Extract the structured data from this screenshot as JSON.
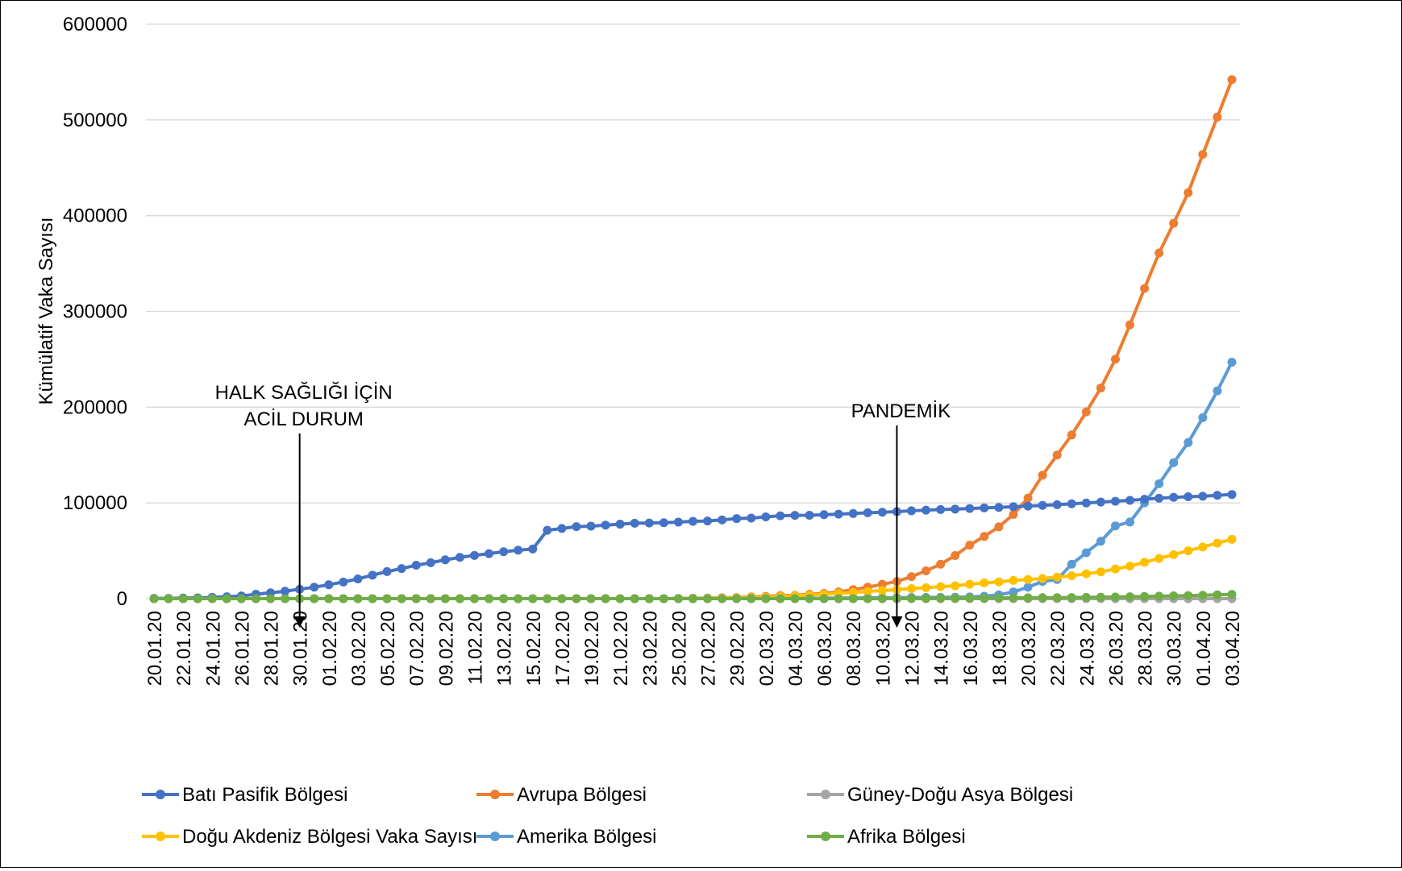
{
  "chart_data": {
    "type": "line",
    "title": "",
    "xlabel": "",
    "ylabel": "Kümülatif Vaka Sayısı",
    "ylim": [
      0,
      600000
    ],
    "yticks": [
      "0",
      "100000",
      "200000",
      "300000",
      "400000",
      "500000",
      "600000"
    ],
    "grid": true,
    "legend_position": "bottom",
    "x": [
      "20.01.20",
      "21.01.20",
      "22.01.20",
      "23.01.20",
      "24.01.20",
      "25.01.20",
      "26.01.20",
      "27.01.20",
      "28.01.20",
      "29.01.20",
      "30.01.20",
      "31.01.20",
      "01.02.20",
      "02.02.20",
      "03.02.20",
      "04.02.20",
      "05.02.20",
      "06.02.20",
      "07.02.20",
      "08.02.20",
      "09.02.20",
      "10.02.20",
      "11.02.20",
      "12.02.20",
      "13.02.20",
      "14.02.20",
      "15.02.20",
      "16.02.20",
      "17.02.20",
      "18.02.20",
      "19.02.20",
      "20.02.20",
      "21.02.20",
      "22.02.20",
      "23.02.20",
      "24.02.20",
      "25.02.20",
      "26.02.20",
      "27.02.20",
      "28.02.20",
      "29.02.20",
      "01.03.20",
      "02.03.20",
      "03.03.20",
      "04.03.20",
      "05.03.20",
      "06.03.20",
      "07.03.20",
      "08.03.20",
      "09.03.20",
      "10.03.20",
      "11.03.20",
      "12.03.20",
      "13.03.20",
      "14.03.20",
      "15.03.20",
      "16.03.20",
      "17.03.20",
      "18.03.20",
      "19.03.20",
      "20.03.20",
      "21.03.20",
      "22.03.20",
      "23.03.20",
      "24.03.20",
      "25.03.20",
      "26.03.20",
      "27.03.20",
      "28.03.20",
      "29.03.20",
      "30.03.20",
      "31.03.20",
      "01.04.20",
      "02.04.20",
      "03.04.20"
    ],
    "xticklabels": [
      "20.01.20",
      "22.01.20",
      "24.01.20",
      "26.01.20",
      "28.01.20",
      "30.01.20",
      "01.02.20",
      "03.02.20",
      "05.02.20",
      "07.02.20",
      "09.02.20",
      "11.02.20",
      "13.02.20",
      "15.02.20",
      "17.02.20",
      "19.02.20",
      "21.02.20",
      "23.02.20",
      "25.02.20",
      "27.02.20",
      "29.02.20",
      "02.03.20",
      "04.03.20",
      "06.03.20",
      "08.03.20",
      "10.03.20",
      "12.03.20",
      "14.03.20",
      "16.03.20",
      "18.03.20",
      "20.03.20",
      "22.03.20",
      "24.03.20",
      "26.03.20",
      "28.03.20",
      "30.03.20",
      "01.04.20",
      "03.04.20"
    ],
    "series": [
      {
        "name": "Batı Pasifik Bölgesi",
        "color": "#4472C4",
        "values": [
          282,
          314,
          581,
          846,
          1320,
          2014,
          2798,
          4593,
          6065,
          7818,
          9826,
          11953,
          14557,
          17391,
          20630,
          24554,
          28276,
          31481,
          34886,
          37558,
          40554,
          43103,
          45171,
          46997,
          49053,
          50580,
          51857,
          71429,
          73332,
          75204,
          75748,
          76769,
          77794,
          78811,
          78959,
          79331,
          79968,
          80813,
          81109,
          82294,
          83652,
          84124,
          85403,
          86604,
          86990,
          87137,
          87708,
          88225,
          88948,
          89735,
          90218,
          90869,
          91779,
          92425,
          93123,
          93543,
          94173,
          94742,
          95285,
          96010,
          96692,
          97411,
          98141,
          99052,
          99920,
          100845,
          101769,
          102703,
          103775,
          104868,
          105792,
          106422,
          106965,
          107945,
          108815
        ]
      },
      {
        "name": "Avrupa Bölgesi",
        "color": "#ED7D31",
        "values": [
          0,
          0,
          0,
          0,
          0,
          0,
          0,
          0,
          0,
          0,
          0,
          0,
          0,
          0,
          0,
          0,
          0,
          0,
          0,
          0,
          0,
          0,
          0,
          0,
          0,
          0,
          0,
          0,
          0,
          0,
          0,
          0,
          0,
          0,
          0,
          0,
          200,
          400,
          600,
          900,
          1200,
          1800,
          2400,
          3200,
          3500,
          4500,
          5500,
          7000,
          9500,
          12000,
          15000,
          18000,
          23000,
          29000,
          36000,
          45000,
          56000,
          65000,
          75000,
          88000,
          105000,
          129000,
          150000,
          171000,
          195000,
          220000,
          250000,
          286000,
          324000,
          361000,
          392000,
          424000,
          464000,
          503000,
          542000
        ]
      },
      {
        "name": "Güney-Doğu Asya Bölgesi",
        "color": "#A5A5A5",
        "values": [
          0,
          0,
          0,
          0,
          0,
          0,
          0,
          0,
          0,
          0,
          0,
          0,
          0,
          0,
          0,
          0,
          0,
          0,
          0,
          0,
          0,
          0,
          0,
          0,
          0,
          0,
          0,
          0,
          0,
          0,
          0,
          0,
          0,
          0,
          0,
          0,
          0,
          0,
          0,
          0,
          0,
          0,
          0,
          0,
          0,
          0,
          0,
          0,
          0,
          0,
          0,
          0,
          0,
          0,
          0,
          0,
          0,
          0,
          0,
          0,
          0,
          0,
          0,
          0,
          0,
          0,
          0,
          0,
          0,
          0,
          0,
          0,
          0,
          0,
          0
        ]
      },
      {
        "name": "Doğu Akdeniz Bölgesi Vaka Sayısı",
        "color": "#FFC000",
        "values": [
          0,
          0,
          0,
          0,
          0,
          0,
          0,
          0,
          0,
          0,
          0,
          0,
          0,
          0,
          0,
          0,
          0,
          0,
          0,
          0,
          0,
          0,
          0,
          0,
          0,
          0,
          0,
          0,
          0,
          0,
          0,
          0,
          0,
          0,
          0,
          0,
          100,
          200,
          400,
          600,
          800,
          1100,
          1600,
          2200,
          3000,
          3800,
          4500,
          5500,
          6500,
          7500,
          8500,
          9500,
          10500,
          11500,
          12500,
          13500,
          15000,
          16500,
          17500,
          19000,
          20000,
          21000,
          22500,
          24000,
          26000,
          28000,
          31000,
          34000,
          38000,
          42000,
          46000,
          50000,
          54000,
          58000,
          62000
        ]
      },
      {
        "name": "Amerika Bölgesi",
        "color": "#5B9BD5",
        "values": [
          0,
          0,
          0,
          0,
          0,
          0,
          0,
          0,
          0,
          0,
          0,
          0,
          0,
          0,
          0,
          0,
          0,
          0,
          0,
          0,
          0,
          0,
          0,
          0,
          0,
          0,
          0,
          0,
          0,
          0,
          0,
          0,
          0,
          0,
          0,
          0,
          0,
          0,
          0,
          0,
          0,
          0,
          100,
          200,
          300,
          400,
          500,
          600,
          700,
          800,
          900,
          1000,
          1200,
          1300,
          1400,
          1500,
          1800,
          2500,
          4000,
          7000,
          12000,
          18000,
          20000,
          36000,
          48000,
          60000,
          76000,
          80000,
          100000,
          120000,
          142000,
          163000,
          189000,
          217000,
          247000
        ]
      },
      {
        "name": "Afrika Bölgesi",
        "color": "#70AD47",
        "values": [
          0,
          0,
          0,
          0,
          0,
          0,
          0,
          0,
          0,
          0,
          0,
          0,
          0,
          0,
          0,
          0,
          0,
          0,
          0,
          0,
          0,
          0,
          0,
          0,
          0,
          0,
          0,
          0,
          0,
          0,
          0,
          0,
          0,
          0,
          0,
          0,
          0,
          0,
          0,
          0,
          0,
          0,
          0,
          0,
          0,
          0,
          0,
          0,
          0,
          0,
          100,
          150,
          200,
          250,
          300,
          400,
          500,
          600,
          700,
          800,
          900,
          1000,
          1100,
          1200,
          1400,
          1600,
          1800,
          2000,
          2300,
          2600,
          2900,
          3200,
          3600,
          4000,
          4500
        ]
      }
    ],
    "annotations": [
      {
        "lines": [
          "HALK SAĞLIĞI İÇİN",
          "ACİL DURUM"
        ],
        "x": "30.01.20"
      },
      {
        "lines": [
          "PANDEMİK"
        ],
        "x": "11.03.20"
      }
    ]
  }
}
